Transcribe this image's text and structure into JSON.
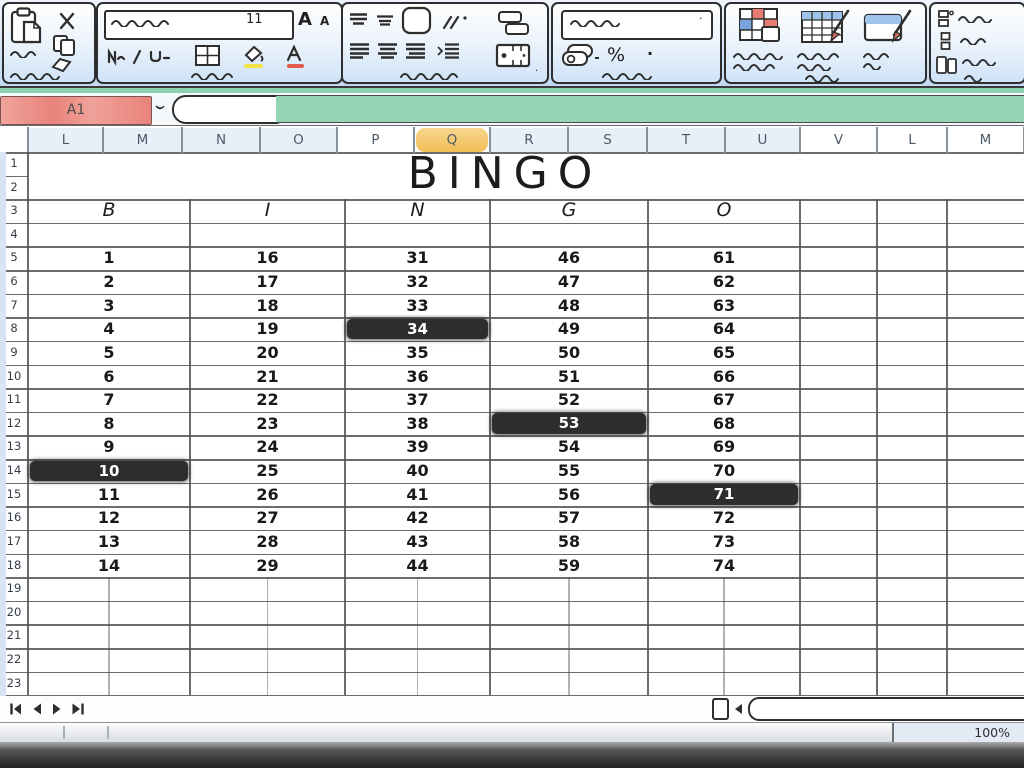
{
  "ribbon": {
    "font_size_value": "11",
    "grow_font_glyph": "A",
    "shrink_font_glyph": "A",
    "percent_glyph": "%"
  },
  "formula_row": {
    "name_box_value": "A1",
    "formula_value": ""
  },
  "grid": {
    "column_headers": [
      "L",
      "M",
      "N",
      "O",
      "P",
      "Q",
      "R",
      "S",
      "T",
      "U",
      "V",
      "L",
      "M"
    ],
    "active_column_header": "Q",
    "row_headers": [
      "1",
      "2",
      "3",
      "4",
      "5",
      "6",
      "7",
      "8",
      "9",
      "10",
      "11",
      "12",
      "13",
      "14",
      "15",
      "16",
      "17",
      "18",
      "19",
      "20",
      "21",
      "22",
      "23"
    ]
  },
  "sheet": {
    "title": "BINGO",
    "card": {
      "headers": [
        "B",
        "I",
        "N",
        "G",
        "O"
      ],
      "columns": [
        {
          "header": "B",
          "values": [
            1,
            2,
            3,
            4,
            5,
            6,
            7,
            8,
            9,
            10,
            11,
            12,
            13,
            14
          ],
          "marked": [
            10
          ]
        },
        {
          "header": "I",
          "values": [
            16,
            17,
            18,
            19,
            20,
            21,
            22,
            23,
            24,
            25,
            26,
            27,
            28,
            29
          ],
          "marked": []
        },
        {
          "header": "N",
          "values": [
            31,
            32,
            33,
            34,
            35,
            36,
            37,
            38,
            39,
            40,
            41,
            42,
            43,
            44
          ],
          "marked": [
            34
          ]
        },
        {
          "header": "G",
          "values": [
            46,
            47,
            48,
            49,
            50,
            51,
            52,
            53,
            54,
            55,
            56,
            57,
            58,
            59
          ],
          "marked": [
            53
          ]
        },
        {
          "header": "O",
          "values": [
            61,
            62,
            63,
            64,
            65,
            66,
            67,
            68,
            69,
            70,
            71,
            72,
            73,
            74
          ],
          "marked": [
            71
          ]
        }
      ],
      "header_row": 3,
      "first_value_row": 5
    }
  },
  "status_bar": {
    "zoom_level": "100%"
  },
  "colors": {
    "formula_bar": "#93d5b5",
    "name_box": "#e8837b",
    "active_column": "#f2bd57",
    "marked_cell": "#2d2d2d",
    "marked_text": "#ffffff"
  }
}
